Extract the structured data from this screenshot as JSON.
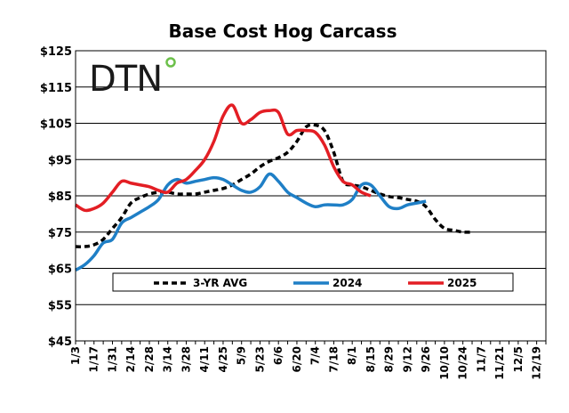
{
  "chart_data": {
    "type": "line",
    "title": "Base Cost Hog Carcass",
    "ylim": [
      45,
      125
    ],
    "yticks": [
      45,
      55,
      65,
      75,
      85,
      95,
      105,
      115,
      125
    ],
    "ytick_labels": [
      "$45",
      "$55",
      "$65",
      "$75",
      "$85",
      "$95",
      "$105",
      "$115",
      "$125"
    ],
    "x_count": 52,
    "xtick_labels": [
      "1/3",
      "1/17",
      "1/31",
      "2/14",
      "2/28",
      "3/14",
      "3/28",
      "4/11",
      "4/25",
      "5/9",
      "5/23",
      "6/6",
      "6/20",
      "7/4",
      "7/18",
      "8/1",
      "8/15",
      "8/29",
      "9/12",
      "9/26",
      "10/10",
      "10/24",
      "11/7",
      "11/21",
      "12/5",
      "12/19"
    ],
    "legend": [
      "3-YR AVG",
      "2024",
      "2025"
    ],
    "logo_text": "DTN",
    "series": [
      {
        "name": "3-YR AVG",
        "color": "#000000",
        "dash": "6,4",
        "values": [
          71,
          71,
          71.5,
          73,
          76,
          79,
          83,
          84.5,
          85.5,
          86,
          86,
          85.5,
          85.5,
          85.5,
          86,
          86.5,
          87,
          88,
          89.5,
          91,
          93,
          94.5,
          95.5,
          97,
          100,
          104,
          104.5,
          103,
          97,
          89,
          88,
          87.5,
          86.5,
          85.5,
          84.8,
          84.5,
          84,
          83.5,
          82,
          78.5,
          76,
          75.5,
          75,
          75
        ]
      },
      {
        "name": "2024",
        "color": "#1f7fc6",
        "dash": "",
        "values": [
          64.5,
          66,
          68.5,
          72,
          73,
          77.5,
          79,
          80.5,
          82,
          84,
          88,
          89.5,
          88.5,
          89,
          89.5,
          90,
          89.5,
          88,
          86.5,
          86,
          87.5,
          91,
          89,
          86,
          84.5,
          83,
          82,
          82.5,
          82.5,
          82.5,
          84,
          88,
          88,
          85,
          82,
          81.5,
          82.5,
          83,
          83.5
        ]
      },
      {
        "name": "2025",
        "color": "#e31e24",
        "dash": "",
        "values": [
          82.5,
          81,
          81.5,
          83,
          86,
          89,
          88.5,
          88,
          87.5,
          86.5,
          86,
          88.5,
          89.5,
          92,
          95,
          100,
          107,
          110,
          105,
          106,
          108,
          108.5,
          108,
          102,
          103,
          103,
          102.5,
          99,
          93,
          89,
          88,
          86,
          85
        ]
      }
    ]
  }
}
